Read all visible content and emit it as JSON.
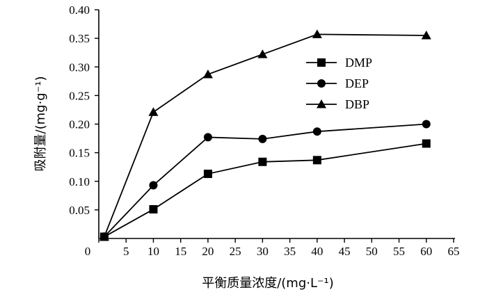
{
  "chart_data": {
    "type": "line",
    "title": "",
    "xlabel": "平衡质量浓度/(mg·L⁻¹)",
    "ylabel": "吸附量/(mg·g⁻¹)",
    "xlim": [
      0,
      65
    ],
    "ylim": [
      0,
      0.4
    ],
    "xticks": [
      "0",
      "5",
      "10",
      "15",
      "20",
      "25",
      "30",
      "35",
      "40",
      "45",
      "50",
      "55",
      "60",
      "65"
    ],
    "yticks": [
      "0.05",
      "0.10",
      "0.15",
      "0.20",
      "0.25",
      "0.30",
      "0.35",
      "0.40"
    ],
    "grid": false,
    "legend_position": "top-right",
    "x": [
      1,
      10,
      20,
      30,
      40,
      60
    ],
    "series": [
      {
        "name": "DMP",
        "marker": "square",
        "values": [
          0.003,
          0.051,
          0.113,
          0.134,
          0.137,
          0.166
        ]
      },
      {
        "name": "DEP",
        "marker": "circle",
        "values": [
          0.003,
          0.093,
          0.177,
          0.174,
          0.187,
          0.2
        ]
      },
      {
        "name": "DBP",
        "marker": "triangle",
        "values": [
          0.003,
          0.221,
          0.287,
          0.322,
          0.357,
          0.355
        ]
      }
    ]
  }
}
